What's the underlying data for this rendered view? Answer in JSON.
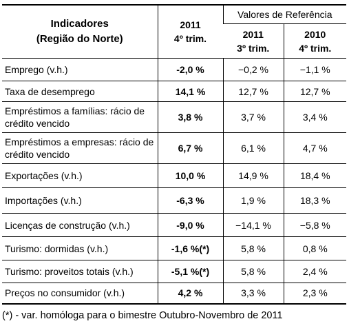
{
  "header": {
    "indicator": [
      "Indicadores",
      "(Região do Norte)"
    ],
    "current": [
      "2011",
      "4º trim."
    ],
    "reference": "Valores de Referência",
    "ref_columns": [
      [
        "2011",
        "3º trim."
      ],
      [
        "2010",
        "4º trim."
      ]
    ]
  },
  "table": {
    "rows": [
      [
        "Emprego (v.h.)",
        "-2,0 %",
        "−0,2 %",
        "−1,1 %"
      ],
      [
        "Taxa de desemprego",
        "14,1 %",
        "12,7 %",
        "12,7 %"
      ],
      [
        "Empréstimos a famílias: rácio de crédito vencido",
        "3,8 %",
        "3,7 %",
        "3,4 %"
      ],
      [
        "Empréstimos a empresas: rácio de crédito vencido",
        "6,7 %",
        "6,1 %",
        "4,7 %"
      ],
      [
        "Exportações (v.h.)",
        "10,0 %",
        "14,9 %",
        "18,4 %"
      ],
      [
        "Importações (v.h.)",
        "-6,3 %",
        "1,9 %",
        "18,3 %"
      ],
      [
        "Licenças de construção (v.h.)",
        "-9,0 %",
        "−14,1 %",
        "−5,8 %"
      ],
      [
        "Turismo: dormidas (v.h.)",
        "-1,6 %(*)",
        "5,8 %",
        "0,8 %"
      ],
      [
        "Turismo: proveitos totais (v.h.)",
        "-5,1 %(*)",
        "5,8 %",
        "2,4 %"
      ],
      [
        "Preços no consumidor (v.h.)",
        "4,2 %",
        "3,3 %",
        "2,3 %"
      ]
    ]
  },
  "footnote": "(*) - var. homóloga para o bimestre Outubro-Novembro de 2011"
}
